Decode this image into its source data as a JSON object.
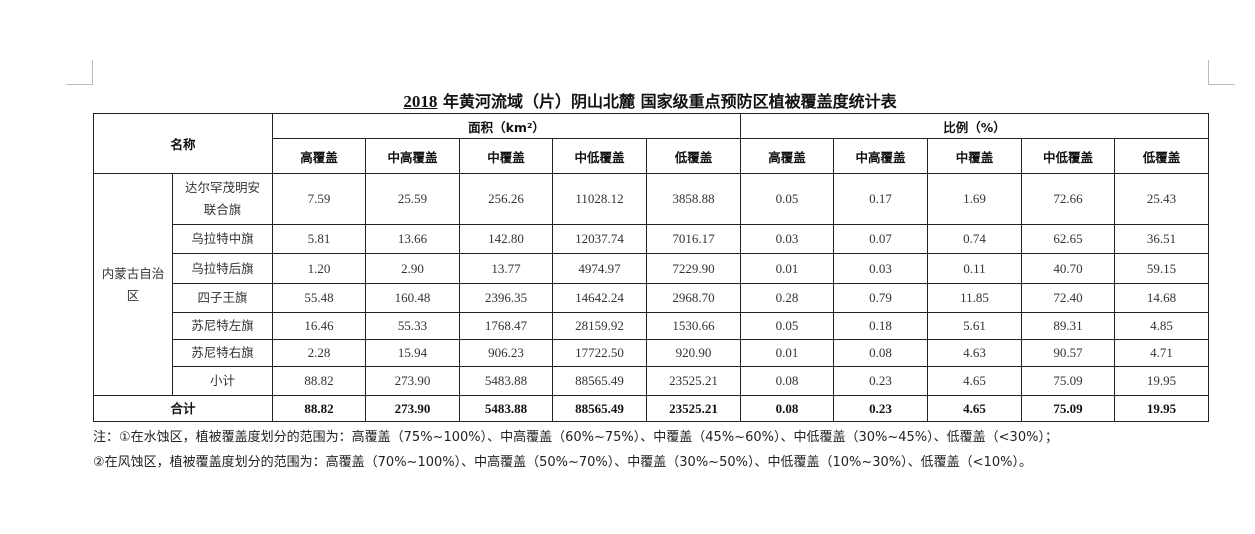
{
  "title": {
    "year": "2018",
    "text": "年黄河流域（片）阴山北麓 国家级重点预防区植被覆盖度统计表"
  },
  "header": {
    "name": "名称",
    "area": "面积（km²）",
    "ratio": "比例（%）",
    "levels": [
      "高覆盖",
      "中高覆盖",
      "中覆盖",
      "中低覆盖",
      "低覆盖"
    ]
  },
  "region": "内蒙古自治区",
  "rows": [
    {
      "name": "达尔罕茂明安联合旗",
      "area": [
        "7.59",
        "25.59",
        "256.26",
        "11028.12",
        "3858.88"
      ],
      "ratio": [
        "0.05",
        "0.17",
        "1.69",
        "72.66",
        "25.43"
      ]
    },
    {
      "name": "乌拉特中旗",
      "area": [
        "5.81",
        "13.66",
        "142.80",
        "12037.74",
        "7016.17"
      ],
      "ratio": [
        "0.03",
        "0.07",
        "0.74",
        "62.65",
        "36.51"
      ]
    },
    {
      "name": "乌拉特后旗",
      "area": [
        "1.20",
        "2.90",
        "13.77",
        "4974.97",
        "7229.90"
      ],
      "ratio": [
        "0.01",
        "0.03",
        "0.11",
        "40.70",
        "59.15"
      ]
    },
    {
      "name": "四子王旗",
      "area": [
        "55.48",
        "160.48",
        "2396.35",
        "14642.24",
        "2968.70"
      ],
      "ratio": [
        "0.28",
        "0.79",
        "11.85",
        "72.40",
        "14.68"
      ]
    },
    {
      "name": "苏尼特左旗",
      "area": [
        "16.46",
        "55.33",
        "1768.47",
        "28159.92",
        "1530.66"
      ],
      "ratio": [
        "0.05",
        "0.18",
        "5.61",
        "89.31",
        "4.85"
      ]
    },
    {
      "name": "苏尼特右旗",
      "area": [
        "2.28",
        "15.94",
        "906.23",
        "17722.50",
        "920.90"
      ],
      "ratio": [
        "0.01",
        "0.08",
        "4.63",
        "90.57",
        "4.71"
      ]
    },
    {
      "name": "小计",
      "area": [
        "88.82",
        "273.90",
        "5483.88",
        "88565.49",
        "23525.21"
      ],
      "ratio": [
        "0.08",
        "0.23",
        "4.65",
        "75.09",
        "19.95"
      ]
    }
  ],
  "total": {
    "name": "合计",
    "area": [
      "88.82",
      "273.90",
      "5483.88",
      "88565.49",
      "23525.21"
    ],
    "ratio": [
      "0.08",
      "0.23",
      "4.65",
      "75.09",
      "19.95"
    ]
  },
  "notes": [
    "注：①在水蚀区，植被覆盖度划分的范围为：高覆盖（75%~100%）、中高覆盖（60%~75%）、中覆盖（45%~60%）、中低覆盖（30%~45%）、低覆盖（<30%）；",
    "②在风蚀区，植被覆盖度划分的范围为：高覆盖（70%~100%）、中高覆盖（50%~70%）、中覆盖（30%~50%）、中低覆盖（10%~30%）、低覆盖（<10%）。"
  ]
}
